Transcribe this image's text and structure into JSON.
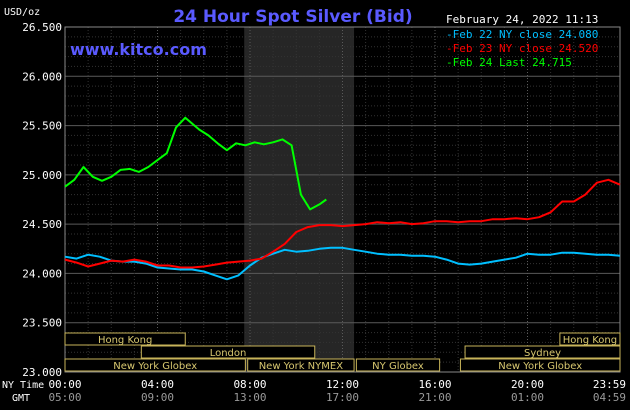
{
  "chart_data": {
    "type": "line",
    "title": "24 Hour Spot Silver (Bid)",
    "y_unit": "USD/oz",
    "source": "www.kitco.com",
    "timestamp": "February 24, 2022 11:13",
    "ylim": [
      23.0,
      26.5
    ],
    "yticks": [
      "23.000",
      "23.500",
      "24.000",
      "24.500",
      "25.000",
      "25.500",
      "26.000",
      "26.500"
    ],
    "x_range_hours": [
      0,
      24
    ],
    "x_ticks": [
      {
        "ny": "00:00",
        "gmt": "05:00"
      },
      {
        "ny": "04:00",
        "gmt": "09:00"
      },
      {
        "ny": "08:00",
        "gmt": "13:00"
      },
      {
        "ny": "12:00",
        "gmt": "17:00"
      },
      {
        "ny": "16:00",
        "gmt": "21:00"
      },
      {
        "ny": "20:00",
        "gmt": "01:00"
      },
      {
        "ny": "23:59",
        "gmt": "04:59"
      }
    ],
    "x_row_labels": {
      "ny": "NY Time",
      "gmt": "GMT"
    },
    "shaded_session_hours": [
      7.75,
      12.5
    ],
    "grid": true,
    "legend_position": "top-right",
    "series": [
      {
        "name": "Feb 22 NY close 24.080",
        "color": "#00bfff",
        "x": [
          0,
          0.5,
          1,
          1.5,
          2,
          2.5,
          3,
          3.5,
          4,
          4.5,
          5,
          5.5,
          6,
          6.5,
          7,
          7.5,
          8,
          8.5,
          9,
          9.5,
          10,
          10.5,
          11,
          11.5,
          12,
          12.5,
          13,
          13.5,
          14,
          14.5,
          15,
          15.5,
          16,
          16.5,
          17,
          17.5,
          18,
          18.5,
          19,
          19.5,
          20,
          20.5,
          21,
          21.5,
          22,
          22.5,
          23,
          23.5,
          24
        ],
        "y": [
          24.17,
          24.15,
          24.19,
          24.17,
          24.13,
          24.12,
          24.12,
          24.1,
          24.06,
          24.05,
          24.04,
          24.04,
          24.02,
          23.98,
          23.94,
          23.98,
          24.08,
          24.16,
          24.2,
          24.24,
          24.22,
          24.23,
          24.25,
          24.26,
          24.26,
          24.24,
          24.22,
          24.2,
          24.19,
          24.19,
          24.18,
          24.18,
          24.17,
          24.14,
          24.1,
          24.09,
          24.1,
          24.12,
          24.14,
          24.16,
          24.2,
          24.19,
          24.19,
          24.21,
          24.21,
          24.2,
          24.19,
          24.19,
          24.18
        ]
      },
      {
        "name": "Feb 23 NY close 24.520",
        "color": "#ff0000",
        "x": [
          0,
          0.5,
          1,
          1.5,
          2,
          2.5,
          3,
          3.5,
          4,
          4.5,
          5,
          5.5,
          6,
          6.5,
          7,
          7.5,
          8,
          8.5,
          9,
          9.5,
          10,
          10.5,
          11,
          11.5,
          12,
          12.5,
          13,
          13.5,
          14,
          14.5,
          15,
          15.5,
          16,
          16.5,
          17,
          17.5,
          18,
          18.5,
          19,
          19.5,
          20,
          20.5,
          21,
          21.5,
          22,
          22.5,
          23,
          23.5,
          24
        ],
        "y": [
          24.14,
          24.11,
          24.07,
          24.1,
          24.13,
          24.12,
          24.14,
          24.12,
          24.08,
          24.08,
          24.06,
          24.06,
          24.07,
          24.09,
          24.11,
          24.12,
          24.13,
          24.15,
          24.22,
          24.3,
          24.42,
          24.47,
          24.49,
          24.49,
          24.48,
          24.49,
          24.5,
          24.52,
          24.51,
          24.52,
          24.5,
          24.51,
          24.53,
          24.53,
          24.52,
          24.53,
          24.53,
          24.55,
          24.55,
          24.56,
          24.55,
          24.57,
          24.62,
          24.73,
          24.73,
          24.8,
          24.92,
          24.95,
          24.9
        ]
      },
      {
        "name": "Feb 24 Last 24.715",
        "color": "#00ff00",
        "x": [
          0,
          0.4,
          0.8,
          1.2,
          1.6,
          2.0,
          2.4,
          2.8,
          3.2,
          3.6,
          4.0,
          4.4,
          4.8,
          5.2,
          5.5,
          5.8,
          6.2,
          6.6,
          7.0,
          7.4,
          7.8,
          8.2,
          8.6,
          9.0,
          9.4,
          9.8,
          10.2,
          10.6,
          11.0,
          11.3
        ],
        "y": [
          24.88,
          24.95,
          25.08,
          24.98,
          24.94,
          24.98,
          25.05,
          25.06,
          25.03,
          25.08,
          25.15,
          25.22,
          25.48,
          25.58,
          25.52,
          25.46,
          25.4,
          25.32,
          25.25,
          25.32,
          25.3,
          25.33,
          25.31,
          25.33,
          25.36,
          25.3,
          24.8,
          24.65,
          24.7,
          24.75
        ]
      }
    ],
    "sessions": {
      "row1": [
        {
          "label": "Hong Kong",
          "start": 0,
          "end": 5.2
        },
        {
          "label": "Hong Kong",
          "start": 21.4,
          "end": 24
        }
      ],
      "row2": [
        {
          "label": "London",
          "start": 3.3,
          "end": 10.8
        },
        {
          "label": "Sydney",
          "start": 17.3,
          "end": 24
        }
      ],
      "row3": [
        {
          "label": "New York Globex",
          "start": 0,
          "end": 7.8
        },
        {
          "label": "New York NYMEX",
          "start": 7.9,
          "end": 12.5
        },
        {
          "label": "NY Globex",
          "start": 12.6,
          "end": 16.2
        },
        {
          "label": "New York Globex",
          "start": 17.1,
          "end": 24
        }
      ]
    }
  }
}
